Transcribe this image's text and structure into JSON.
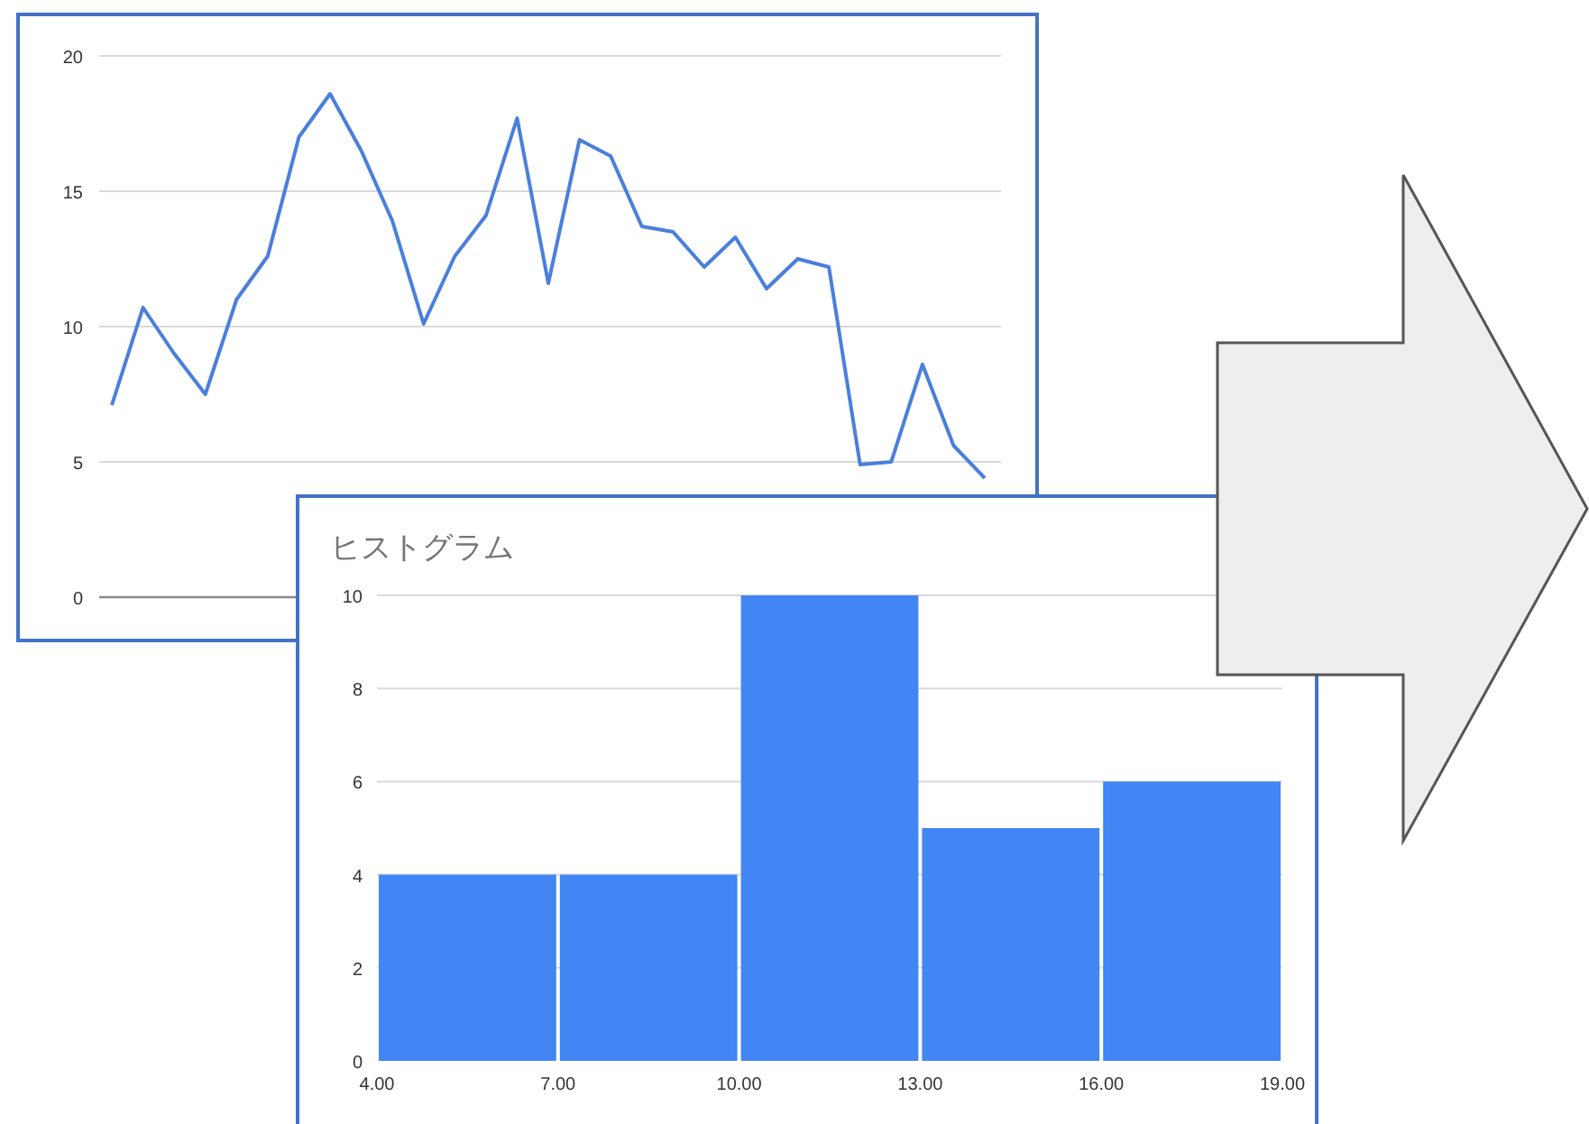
{
  "chart_data": [
    {
      "type": "line",
      "categories": [
        null,
        null,
        null,
        null,
        null,
        null,
        null,
        null,
        null,
        null,
        null,
        null,
        null,
        null,
        null,
        null,
        null,
        null,
        null,
        null,
        null,
        null,
        null,
        null,
        null,
        null,
        null,
        null,
        null
      ],
      "series": [
        {
          "color": "#4a7fdc",
          "values": [
            7.1,
            10.7,
            9.0,
            7.5,
            11.0,
            12.6,
            17.0,
            18.6,
            16.5,
            13.9,
            10.1,
            12.6,
            14.1,
            17.7,
            11.6,
            16.9,
            16.3,
            13.7,
            13.5,
            12.2,
            13.3,
            11.4,
            12.5,
            12.2,
            4.9,
            5.0,
            8.6,
            5.6,
            4.4
          ]
        }
      ],
      "ylim": [
        0,
        20
      ],
      "yticks": [
        0,
        5,
        10,
        15,
        20
      ],
      "grid": "y",
      "tick_labels": "y"
    },
    {
      "type": "histogram",
      "title": "ヒストグラム",
      "bins": [
        4,
        7,
        10,
        13,
        16,
        19
      ],
      "values": [
        4,
        4,
        10,
        5,
        6
      ],
      "color": "#4285f4",
      "xticks": [
        {
          "value": 4,
          "label": "4.00"
        },
        {
          "value": 7,
          "label": "7.00"
        },
        {
          "value": 10,
          "label": "10.00"
        },
        {
          "value": 13,
          "label": "13.00"
        },
        {
          "value": 16,
          "label": "16.00"
        },
        {
          "value": 19,
          "label": "19.00"
        }
      ],
      "xlim": [
        4,
        19
      ],
      "ylim": [
        0,
        10
      ],
      "yticks": [
        0,
        2,
        4,
        6,
        8,
        10
      ],
      "grid": "y"
    }
  ]
}
